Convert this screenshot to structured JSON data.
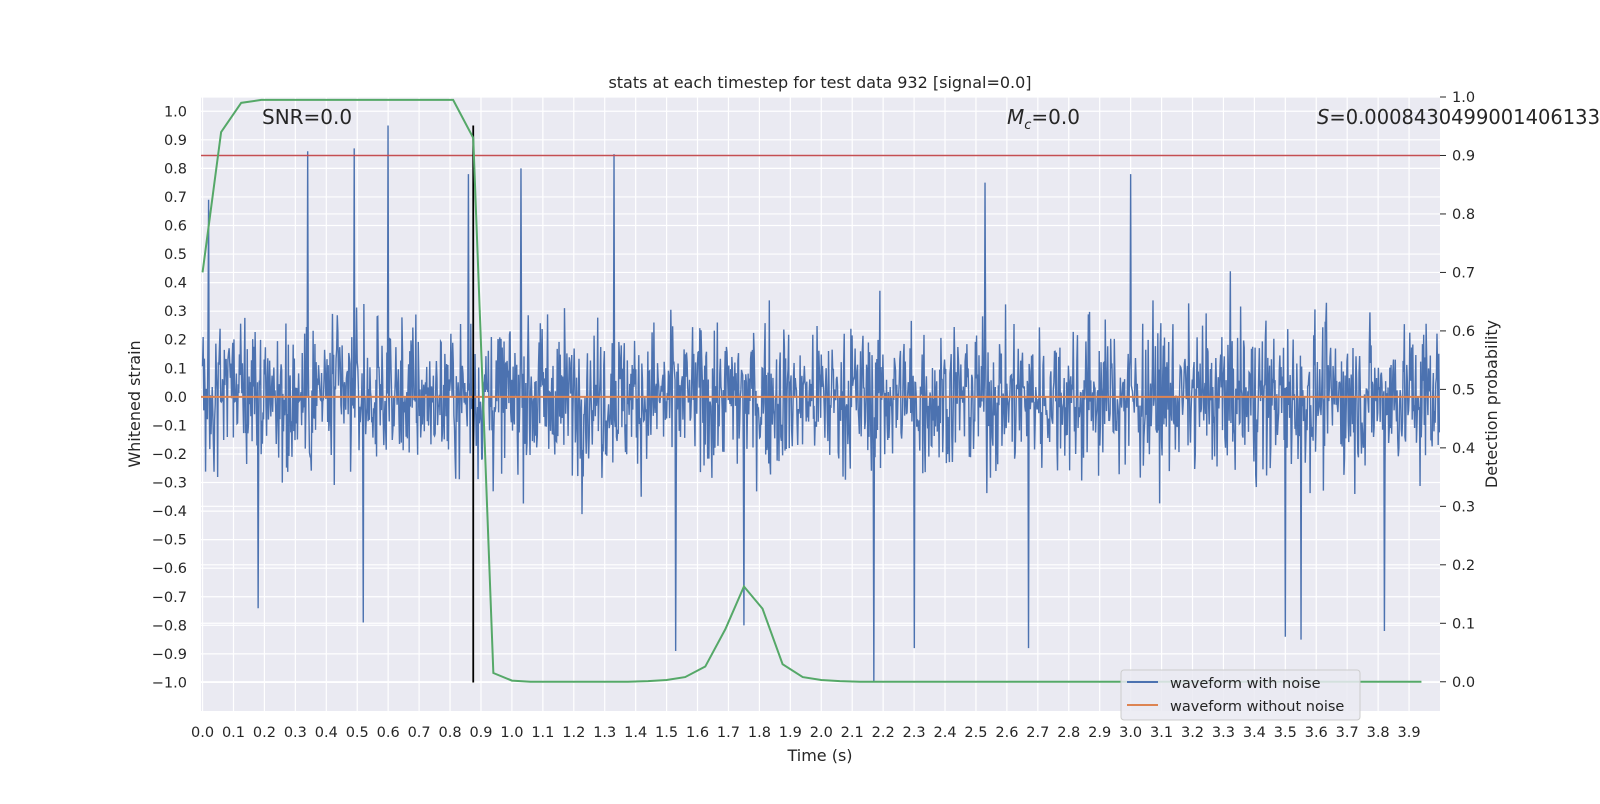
{
  "chart_data": {
    "type": "line",
    "title": "stats at each timestep for test data 932 [signal=0.0]",
    "xlabel": "Time (s)",
    "ylabel_left": "Whitened strain",
    "ylabel_right": "Detection probability",
    "xlim": [
      -0.005,
      4.0
    ],
    "ylim_left": [
      -1.1,
      1.05
    ],
    "ylim_right": [
      -0.05,
      1.0
    ],
    "grid": true,
    "x_ticks": [
      "0.0",
      "0.1",
      "0.2",
      "0.3",
      "0.4",
      "0.5",
      "0.6",
      "0.7",
      "0.8",
      "0.9",
      "1.0",
      "1.1",
      "1.2",
      "1.3",
      "1.4",
      "1.5",
      "1.6",
      "1.7",
      "1.8",
      "1.9",
      "2.0",
      "2.1",
      "2.2",
      "2.3",
      "2.4",
      "2.5",
      "2.6",
      "2.7",
      "2.8",
      "2.9",
      "3.0",
      "3.1",
      "3.2",
      "3.3",
      "3.4",
      "3.5",
      "3.6",
      "3.7",
      "3.8",
      "3.9"
    ],
    "y_ticks_left": [
      "1.0",
      "0.9",
      "0.8",
      "0.7",
      "0.6",
      "0.5",
      "0.4",
      "0.3",
      "0.2",
      "0.1",
      "0.0",
      "−0.1",
      "−0.2",
      "−0.3",
      "−0.4",
      "−0.5",
      "−0.6",
      "−0.7",
      "−0.8",
      "−0.9",
      "−1.0"
    ],
    "y_ticks_right": [
      "1.0",
      "0.9",
      "0.8",
      "0.7",
      "0.6",
      "0.5",
      "0.4",
      "0.3",
      "0.2",
      "0.1",
      "0.0"
    ],
    "annotations": {
      "snr": "SNR=0.0",
      "mc_symbol": "M",
      "mc_sub": "c",
      "mc_value": "=0.0",
      "s_symbol": "S",
      "s_value": "=0.0008430499001406133"
    },
    "threshold_line": {
      "axis": "right",
      "y": 0.9,
      "color": "#c44e52"
    },
    "marker_line": {
      "x": 0.875,
      "y_from": -1.0,
      "y_to": 0.95,
      "color": "#000000"
    },
    "series": [
      {
        "name": "waveform with noise",
        "axis": "left",
        "color": "#4c72b0",
        "note": "dense white-noise strain, mostly within ±0.45 with spikes up to about ±0.95",
        "spikes": [
          {
            "x": 0.02,
            "y": 0.69
          },
          {
            "x": 0.18,
            "y": -0.74
          },
          {
            "x": 0.34,
            "y": 0.86
          },
          {
            "x": 0.49,
            "y": 0.87
          },
          {
            "x": 0.52,
            "y": -0.79
          },
          {
            "x": 0.6,
            "y": 0.95
          },
          {
            "x": 0.86,
            "y": 0.78
          },
          {
            "x": 1.03,
            "y": 0.8
          },
          {
            "x": 1.33,
            "y": 0.85
          },
          {
            "x": 1.53,
            "y": -0.89
          },
          {
            "x": 1.75,
            "y": -0.8
          },
          {
            "x": 2.17,
            "y": -1.0
          },
          {
            "x": 2.3,
            "y": -0.88
          },
          {
            "x": 2.53,
            "y": 0.75
          },
          {
            "x": 2.67,
            "y": -0.88
          },
          {
            "x": 3.0,
            "y": 0.78
          },
          {
            "x": 3.5,
            "y": -0.84
          },
          {
            "x": 3.55,
            "y": -0.85
          },
          {
            "x": 3.82,
            "y": -0.82
          }
        ]
      },
      {
        "name": "waveform without noise",
        "axis": "left",
        "color": "#dd8452",
        "x": [
          0.0,
          4.0
        ],
        "y": [
          0.0,
          0.0
        ]
      },
      {
        "name": "detection probability",
        "axis": "right",
        "color": "#55a868",
        "x": [
          0.0,
          0.06,
          0.125,
          0.19,
          0.25,
          0.31,
          0.375,
          0.44,
          0.5,
          0.56,
          0.625,
          0.69,
          0.75,
          0.81,
          0.875,
          0.94,
          1.0,
          1.06,
          1.125,
          1.19,
          1.25,
          1.31,
          1.375,
          1.44,
          1.5,
          1.56,
          1.625,
          1.69,
          1.75,
          1.81,
          1.875,
          1.94,
          2.0,
          2.06,
          2.125,
          2.5,
          2.75,
          3.0,
          3.25,
          3.5,
          3.75,
          3.94
        ],
        "y": [
          0.7,
          0.94,
          0.99,
          0.995,
          0.995,
          0.995,
          0.995,
          0.995,
          0.995,
          0.995,
          0.995,
          0.995,
          0.995,
          0.995,
          0.93,
          0.015,
          0.002,
          0.0,
          0.0,
          0.0,
          0.0,
          0.0,
          0.0,
          0.001,
          0.003,
          0.008,
          0.026,
          0.09,
          0.163,
          0.125,
          0.03,
          0.008,
          0.003,
          0.001,
          0.0,
          0.0,
          0.0,
          0.0,
          0.0,
          0.0,
          0.0,
          0.0
        ]
      }
    ],
    "legend": {
      "location": "lower-right",
      "entries": [
        {
          "label": "waveform with noise",
          "color": "#4c72b0"
        },
        {
          "label": "waveform without noise",
          "color": "#dd8452"
        }
      ]
    }
  }
}
